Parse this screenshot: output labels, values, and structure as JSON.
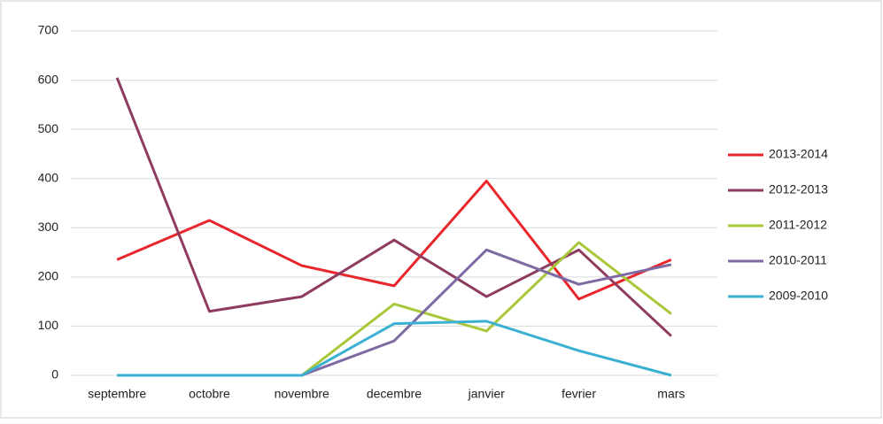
{
  "chart_data": {
    "type": "line",
    "categories": [
      "septembre",
      "octobre",
      "novembre",
      "decembre",
      "janvier",
      "fevrier",
      "mars"
    ],
    "series": [
      {
        "name": "2013-2014",
        "color": "#e8262b",
        "values": [
          235,
          315,
          223,
          182,
          395,
          155,
          235
        ]
      },
      {
        "name": "2012-2013",
        "color": "#8e3b5f",
        "values": [
          605,
          130,
          160,
          275,
          160,
          255,
          80
        ]
      },
      {
        "name": "2011-2012",
        "color": "#a8c83a",
        "values": [
          0,
          0,
          0,
          145,
          90,
          270,
          125
        ]
      },
      {
        "name": "2010-2011",
        "color": "#7d6aa3",
        "values": [
          0,
          0,
          0,
          70,
          255,
          185,
          225
        ]
      },
      {
        "name": "2009-2010",
        "color": "#3ab0d3",
        "values": [
          0,
          0,
          0,
          105,
          110,
          50,
          0
        ]
      }
    ],
    "ylim": [
      0,
      700
    ],
    "yticks": [
      0,
      100,
      200,
      300,
      400,
      500,
      600,
      700
    ],
    "grid": true,
    "legend": "right"
  }
}
